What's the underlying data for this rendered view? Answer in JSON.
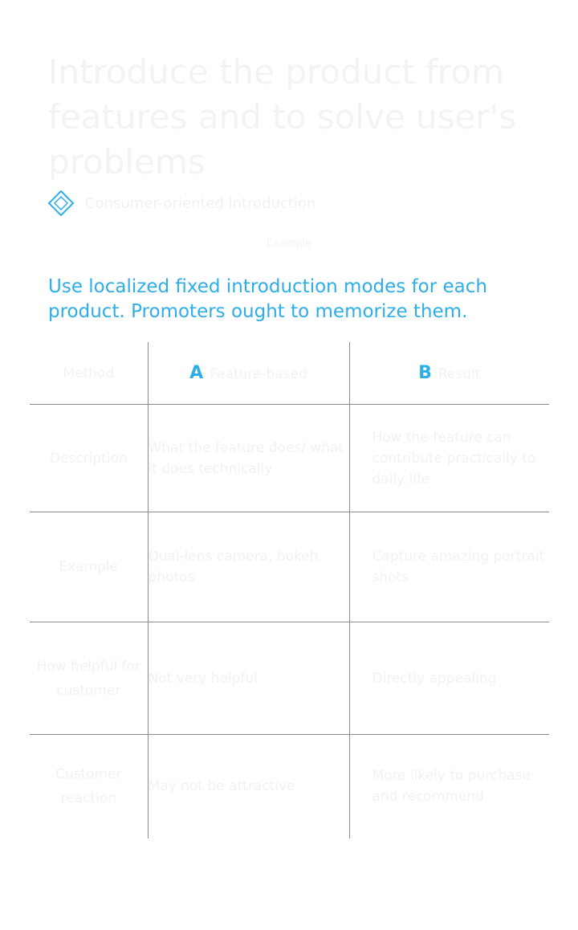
{
  "title": "Introduce the product from features and to solve user's problems",
  "section": {
    "label": "Consumer-oriented introduction"
  },
  "caption": "Example",
  "intro": "Use localized fixed introduction modes for each product. Promoters ought to memorize them.",
  "table": {
    "header": {
      "item": "Method",
      "a_letter": "A",
      "a_label": "Feature-based",
      "b_letter": "B",
      "b_label": "Result"
    },
    "rows": [
      {
        "item": "Description",
        "a": "What the feature does/ what it does technically",
        "b": "How the feature can contribute practically to daily life"
      },
      {
        "item": "Example",
        "a": "Dual-lens camera, bokeh photos",
        "b": "Capture amazing portrait shots"
      },
      {
        "item": "How helpful for customer",
        "a": "Not very helpful",
        "b": "Directly appealing"
      },
      {
        "item": "Customer reaction",
        "a": "May not be attractive",
        "b": "More likely to purchase and recommend"
      }
    ]
  }
}
